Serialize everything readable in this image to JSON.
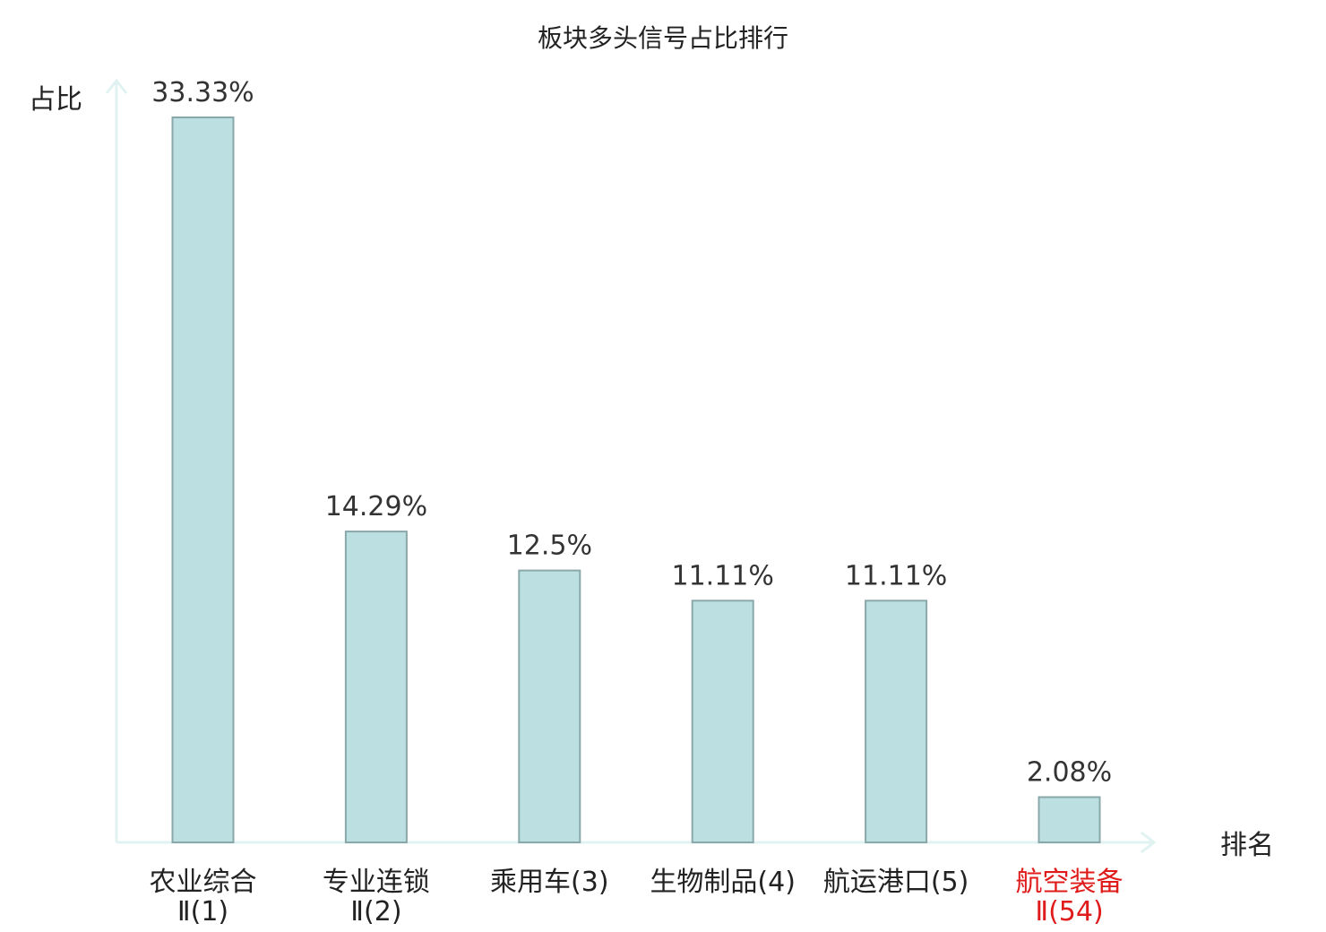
{
  "chart_data": {
    "type": "bar",
    "title": "板块多头信号占比排行",
    "xlabel": "排名",
    "ylabel": "占比",
    "ylim": [
      0,
      35
    ],
    "grid": false,
    "legend": "none",
    "categories": [
      {
        "lines": [
          "农业综合",
          "Ⅱ(1)"
        ],
        "highlight": false
      },
      {
        "lines": [
          "专业连锁",
          "Ⅱ(2)"
        ],
        "highlight": false
      },
      {
        "lines": [
          "乘用车(3)"
        ],
        "highlight": false
      },
      {
        "lines": [
          "生物制品(4)"
        ],
        "highlight": false
      },
      {
        "lines": [
          "航运港口(5)"
        ],
        "highlight": false
      },
      {
        "lines": [
          "航空装备",
          "Ⅱ(54)"
        ],
        "highlight": true
      }
    ],
    "values": [
      33.33,
      14.29,
      12.5,
      11.11,
      11.11,
      2.08
    ],
    "value_labels": [
      "33.33%",
      "14.29%",
      "12.5%",
      "11.11%",
      "11.11%",
      "2.08%"
    ]
  },
  "colors": {
    "bar_fill": "#bce0e2",
    "bar_stroke": "#8aa8aa",
    "axis": "#e0f2f1",
    "text": "#222222",
    "highlight": "#e01b1b"
  }
}
